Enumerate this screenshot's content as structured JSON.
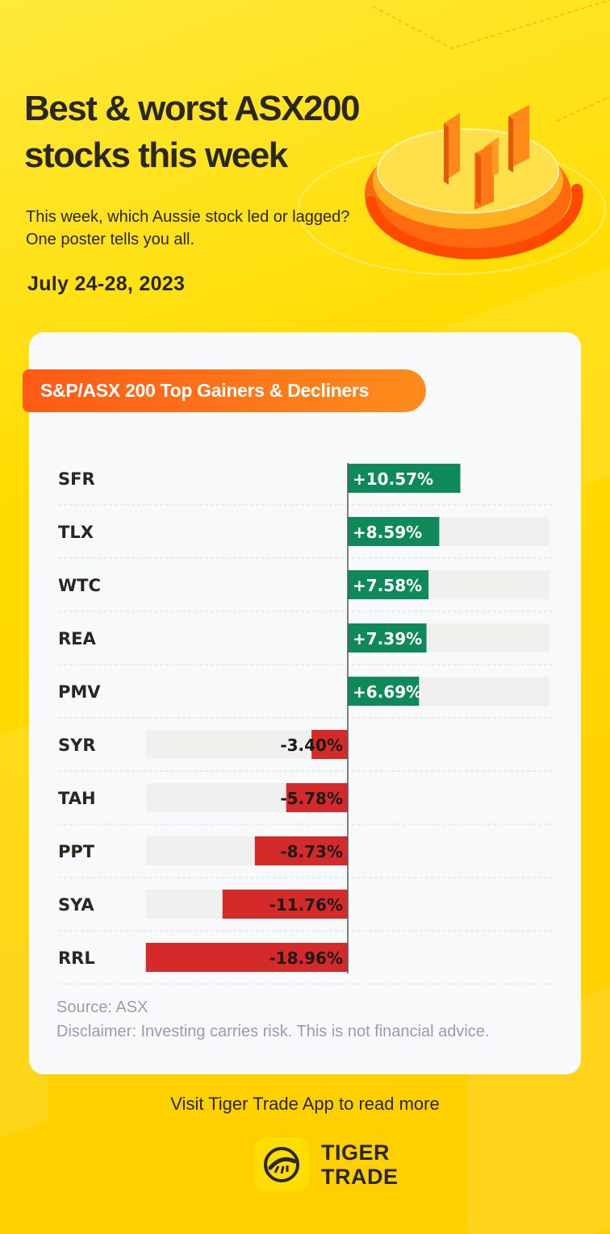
{
  "header": {
    "title": "Best & worst ASX200 stocks this week",
    "subtitle": "This week, which Aussie stock led or lagged? One poster tells you all.",
    "date": "July 24-28, 2023"
  },
  "card": {
    "pill_label": "S&P/ASX 200 Top Gainers & Decliners",
    "source": "Source: ASX",
    "disclaimer": "Disclaimer: Investing carries risk. This is not financial advice."
  },
  "footer": {
    "visit_text": "Visit Tiger Trade App to read more",
    "brand_line1": "TIGER",
    "brand_line2": "TRADE"
  },
  "colors": {
    "gain": "#0e8a5a",
    "loss": "#d42a2a",
    "track": "#f0f0ee",
    "accent": "#ff6a18"
  },
  "chart_data": {
    "type": "bar",
    "orientation": "horizontal",
    "title": "S&P/ASX 200 Top Gainers & Decliners",
    "categories": [
      "SFR",
      "TLX",
      "WTC",
      "REA",
      "PMV",
      "SYR",
      "TAH",
      "PPT",
      "SYA",
      "RRL"
    ],
    "values": [
      10.57,
      8.59,
      7.58,
      7.39,
      6.69,
      -3.4,
      -5.78,
      -8.73,
      -11.76,
      -18.96
    ],
    "labels": [
      "+10.57%",
      "+8.59%",
      "+7.58%",
      "+7.39%",
      "+6.69%",
      "-3.40%",
      "-5.78%",
      "-8.73%",
      "-11.76%",
      "-18.96%"
    ],
    "xlim": [
      -19.5,
      19
    ],
    "unit": "%"
  }
}
